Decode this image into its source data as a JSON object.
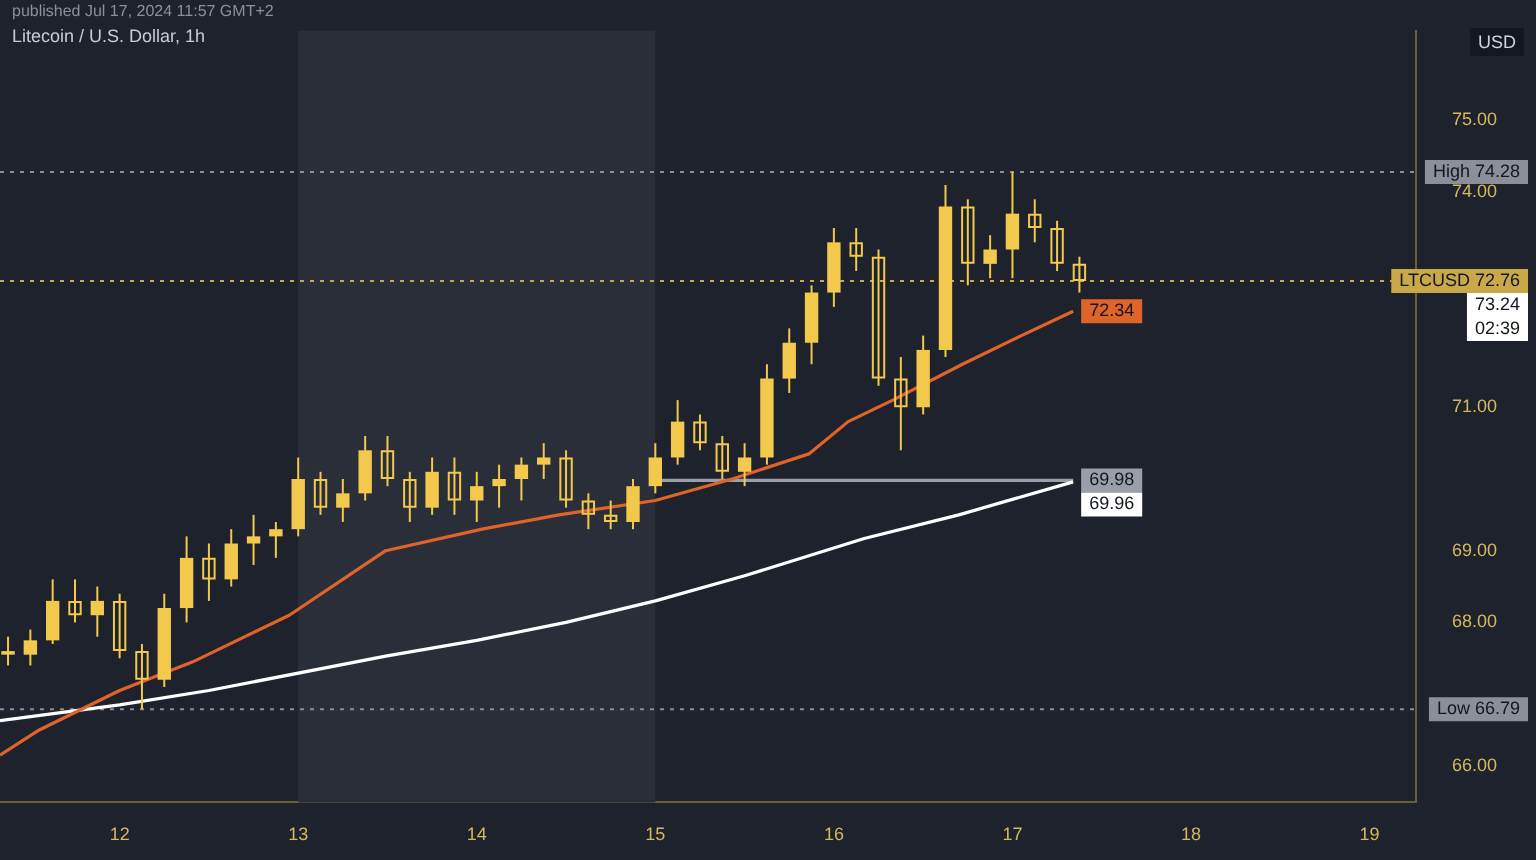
{
  "chart_data": {
    "type": "candlestick",
    "title": "Litecoin / U.S. Dollar, 1h",
    "ylabel": "USD",
    "color": "#f2c94c",
    "x": [
      11.375,
      11.5,
      11.625,
      11.75,
      11.875,
      12,
      12.125,
      12.25,
      12.375,
      12.5,
      12.625,
      12.75,
      12.875,
      13,
      13.125,
      13.25,
      13.375,
      13.5,
      13.625,
      13.75,
      13.875,
      14,
      14.125,
      14.25,
      14.375,
      14.5,
      14.625,
      14.75,
      14.875,
      15,
      15.125,
      15.25,
      15.375,
      15.5,
      15.625,
      15.75,
      15.875,
      16,
      16.125,
      16.25,
      16.375,
      16.5,
      16.625,
      16.75,
      16.875,
      17,
      17.125,
      17.25,
      17.375
    ],
    "ohlc": [
      [
        67.6,
        67.8,
        67.4,
        67.55
      ],
      [
        67.55,
        67.9,
        67.4,
        67.75
      ],
      [
        67.75,
        68.6,
        67.7,
        68.3
      ],
      [
        68.3,
        68.6,
        68.0,
        68.1
      ],
      [
        68.1,
        68.5,
        67.8,
        68.3
      ],
      [
        68.3,
        68.4,
        67.5,
        67.6
      ],
      [
        67.6,
        67.7,
        66.79,
        67.2
      ],
      [
        67.2,
        68.4,
        67.1,
        68.2
      ],
      [
        68.2,
        69.2,
        68.0,
        68.9
      ],
      [
        68.9,
        69.1,
        68.3,
        68.6
      ],
      [
        68.6,
        69.3,
        68.5,
        69.1
      ],
      [
        69.1,
        69.5,
        68.8,
        69.2
      ],
      [
        69.2,
        69.4,
        68.9,
        69.3
      ],
      [
        69.3,
        70.3,
        69.2,
        70.0
      ],
      [
        70.0,
        70.1,
        69.5,
        69.6
      ],
      [
        69.6,
        70.0,
        69.4,
        69.8
      ],
      [
        69.8,
        70.6,
        69.7,
        70.4
      ],
      [
        70.4,
        70.6,
        69.9,
        70.0
      ],
      [
        70.0,
        70.1,
        69.4,
        69.6
      ],
      [
        69.6,
        70.3,
        69.5,
        70.1
      ],
      [
        70.1,
        70.3,
        69.5,
        69.7
      ],
      [
        69.7,
        70.1,
        69.4,
        69.9
      ],
      [
        69.9,
        70.2,
        69.6,
        70.0
      ],
      [
        70.0,
        70.3,
        69.7,
        70.2
      ],
      [
        70.2,
        70.5,
        70.0,
        70.3
      ],
      [
        70.3,
        70.4,
        69.6,
        69.7
      ],
      [
        69.7,
        69.8,
        69.3,
        69.5
      ],
      [
        69.5,
        69.7,
        69.3,
        69.4
      ],
      [
        69.4,
        70.0,
        69.3,
        69.9
      ],
      [
        69.9,
        70.5,
        69.8,
        70.3
      ],
      [
        70.3,
        71.1,
        70.2,
        70.8
      ],
      [
        70.8,
        70.9,
        70.4,
        70.5
      ],
      [
        70.5,
        70.6,
        70.0,
        70.1
      ],
      [
        70.1,
        70.5,
        69.9,
        70.3
      ],
      [
        70.3,
        71.6,
        70.2,
        71.4
      ],
      [
        71.4,
        72.1,
        71.2,
        71.9
      ],
      [
        71.9,
        72.7,
        71.6,
        72.6
      ],
      [
        72.6,
        73.5,
        72.4,
        73.3
      ],
      [
        73.3,
        73.5,
        72.9,
        73.1
      ],
      [
        73.1,
        73.2,
        71.3,
        71.4
      ],
      [
        71.4,
        71.7,
        70.4,
        71.0
      ],
      [
        71.0,
        72.0,
        70.9,
        71.8
      ],
      [
        71.8,
        74.1,
        71.7,
        73.8
      ],
      [
        73.8,
        73.9,
        72.7,
        73.0
      ],
      [
        73.0,
        73.4,
        72.8,
        73.2
      ],
      [
        73.2,
        74.28,
        72.8,
        73.7
      ],
      [
        73.7,
        73.9,
        73.3,
        73.5
      ],
      [
        73.5,
        73.6,
        72.9,
        73.0
      ],
      [
        73.0,
        73.1,
        72.6,
        72.76
      ]
    ],
    "series": [
      {
        "type": "line",
        "color": "#e0632a",
        "x": [
          11.33,
          11.55,
          12,
          12.41,
          12.95,
          13.49,
          14.03,
          14.46,
          15,
          15.43,
          15.86,
          16.08,
          16.33,
          16.72,
          17.05,
          17.34
        ],
        "values": [
          66.15,
          66.5,
          67.05,
          67.45,
          68.1,
          69.0,
          69.3,
          69.5,
          69.7,
          70.0,
          70.35,
          70.8,
          71.1,
          71.6,
          72.0,
          72.34
        ],
        "value_labels": [
          null,
          null,
          null,
          null,
          null,
          null,
          null,
          null,
          null,
          null,
          null,
          null,
          null,
          null,
          null,
          "72.34"
        ]
      },
      {
        "type": "line",
        "color": "#ffffff",
        "x": [
          11.33,
          12,
          12.5,
          13.49,
          14,
          14.5,
          15,
          15.5,
          16.17,
          16.7,
          17.34
        ],
        "values": [
          66.63,
          66.85,
          67.05,
          67.53,
          67.75,
          68.0,
          68.3,
          68.65,
          69.17,
          69.5,
          69.96
        ],
        "value_labels": [
          null,
          null,
          null,
          null,
          null,
          null,
          null,
          null,
          null,
          null,
          "69.96"
        ]
      },
      {
        "type": "line",
        "color": "#9a9ea8",
        "x": [
          15,
          17.34
        ],
        "values": [
          69.98,
          69.98
        ],
        "value_labels": [
          null,
          "69.98"
        ]
      }
    ],
    "xlim": [
      11.33,
      19.26
    ],
    "xticks": [
      12,
      13,
      14,
      15,
      16,
      17,
      18,
      19
    ],
    "ylim": [
      65.49,
      76.25
    ],
    "yticks": [
      {
        "value": 66,
        "label": "66.00"
      },
      {
        "value": 68,
        "label": "68.00"
      },
      {
        "value": 69,
        "label": "69.00"
      },
      {
        "value": 71,
        "label": "71.00"
      },
      {
        "value": 74,
        "label": "74.00"
      },
      {
        "value": 75,
        "label": "75.00"
      }
    ],
    "bands": [
      {
        "axis": "x",
        "from": 13,
        "to": 15,
        "color": "#2a2e39"
      }
    ],
    "ref_lines": [
      {
        "axis": "y",
        "value": 74.28,
        "label": "High 74.28",
        "color": "#8a8f9a",
        "line_style": "dotted"
      },
      {
        "axis": "y",
        "value": 72.76,
        "label": "LTCUSD 72.76",
        "color": "#c9a84a",
        "line_style": "dotted"
      },
      {
        "axis": "y",
        "value": 66.79,
        "label": "Low 66.79",
        "color": "#8a8f9a",
        "line_style": "dotted"
      }
    ],
    "annotations": [
      "published Jul 17, 2024 11:57 GMT+2",
      "73.24",
      "02:39"
    ]
  }
}
